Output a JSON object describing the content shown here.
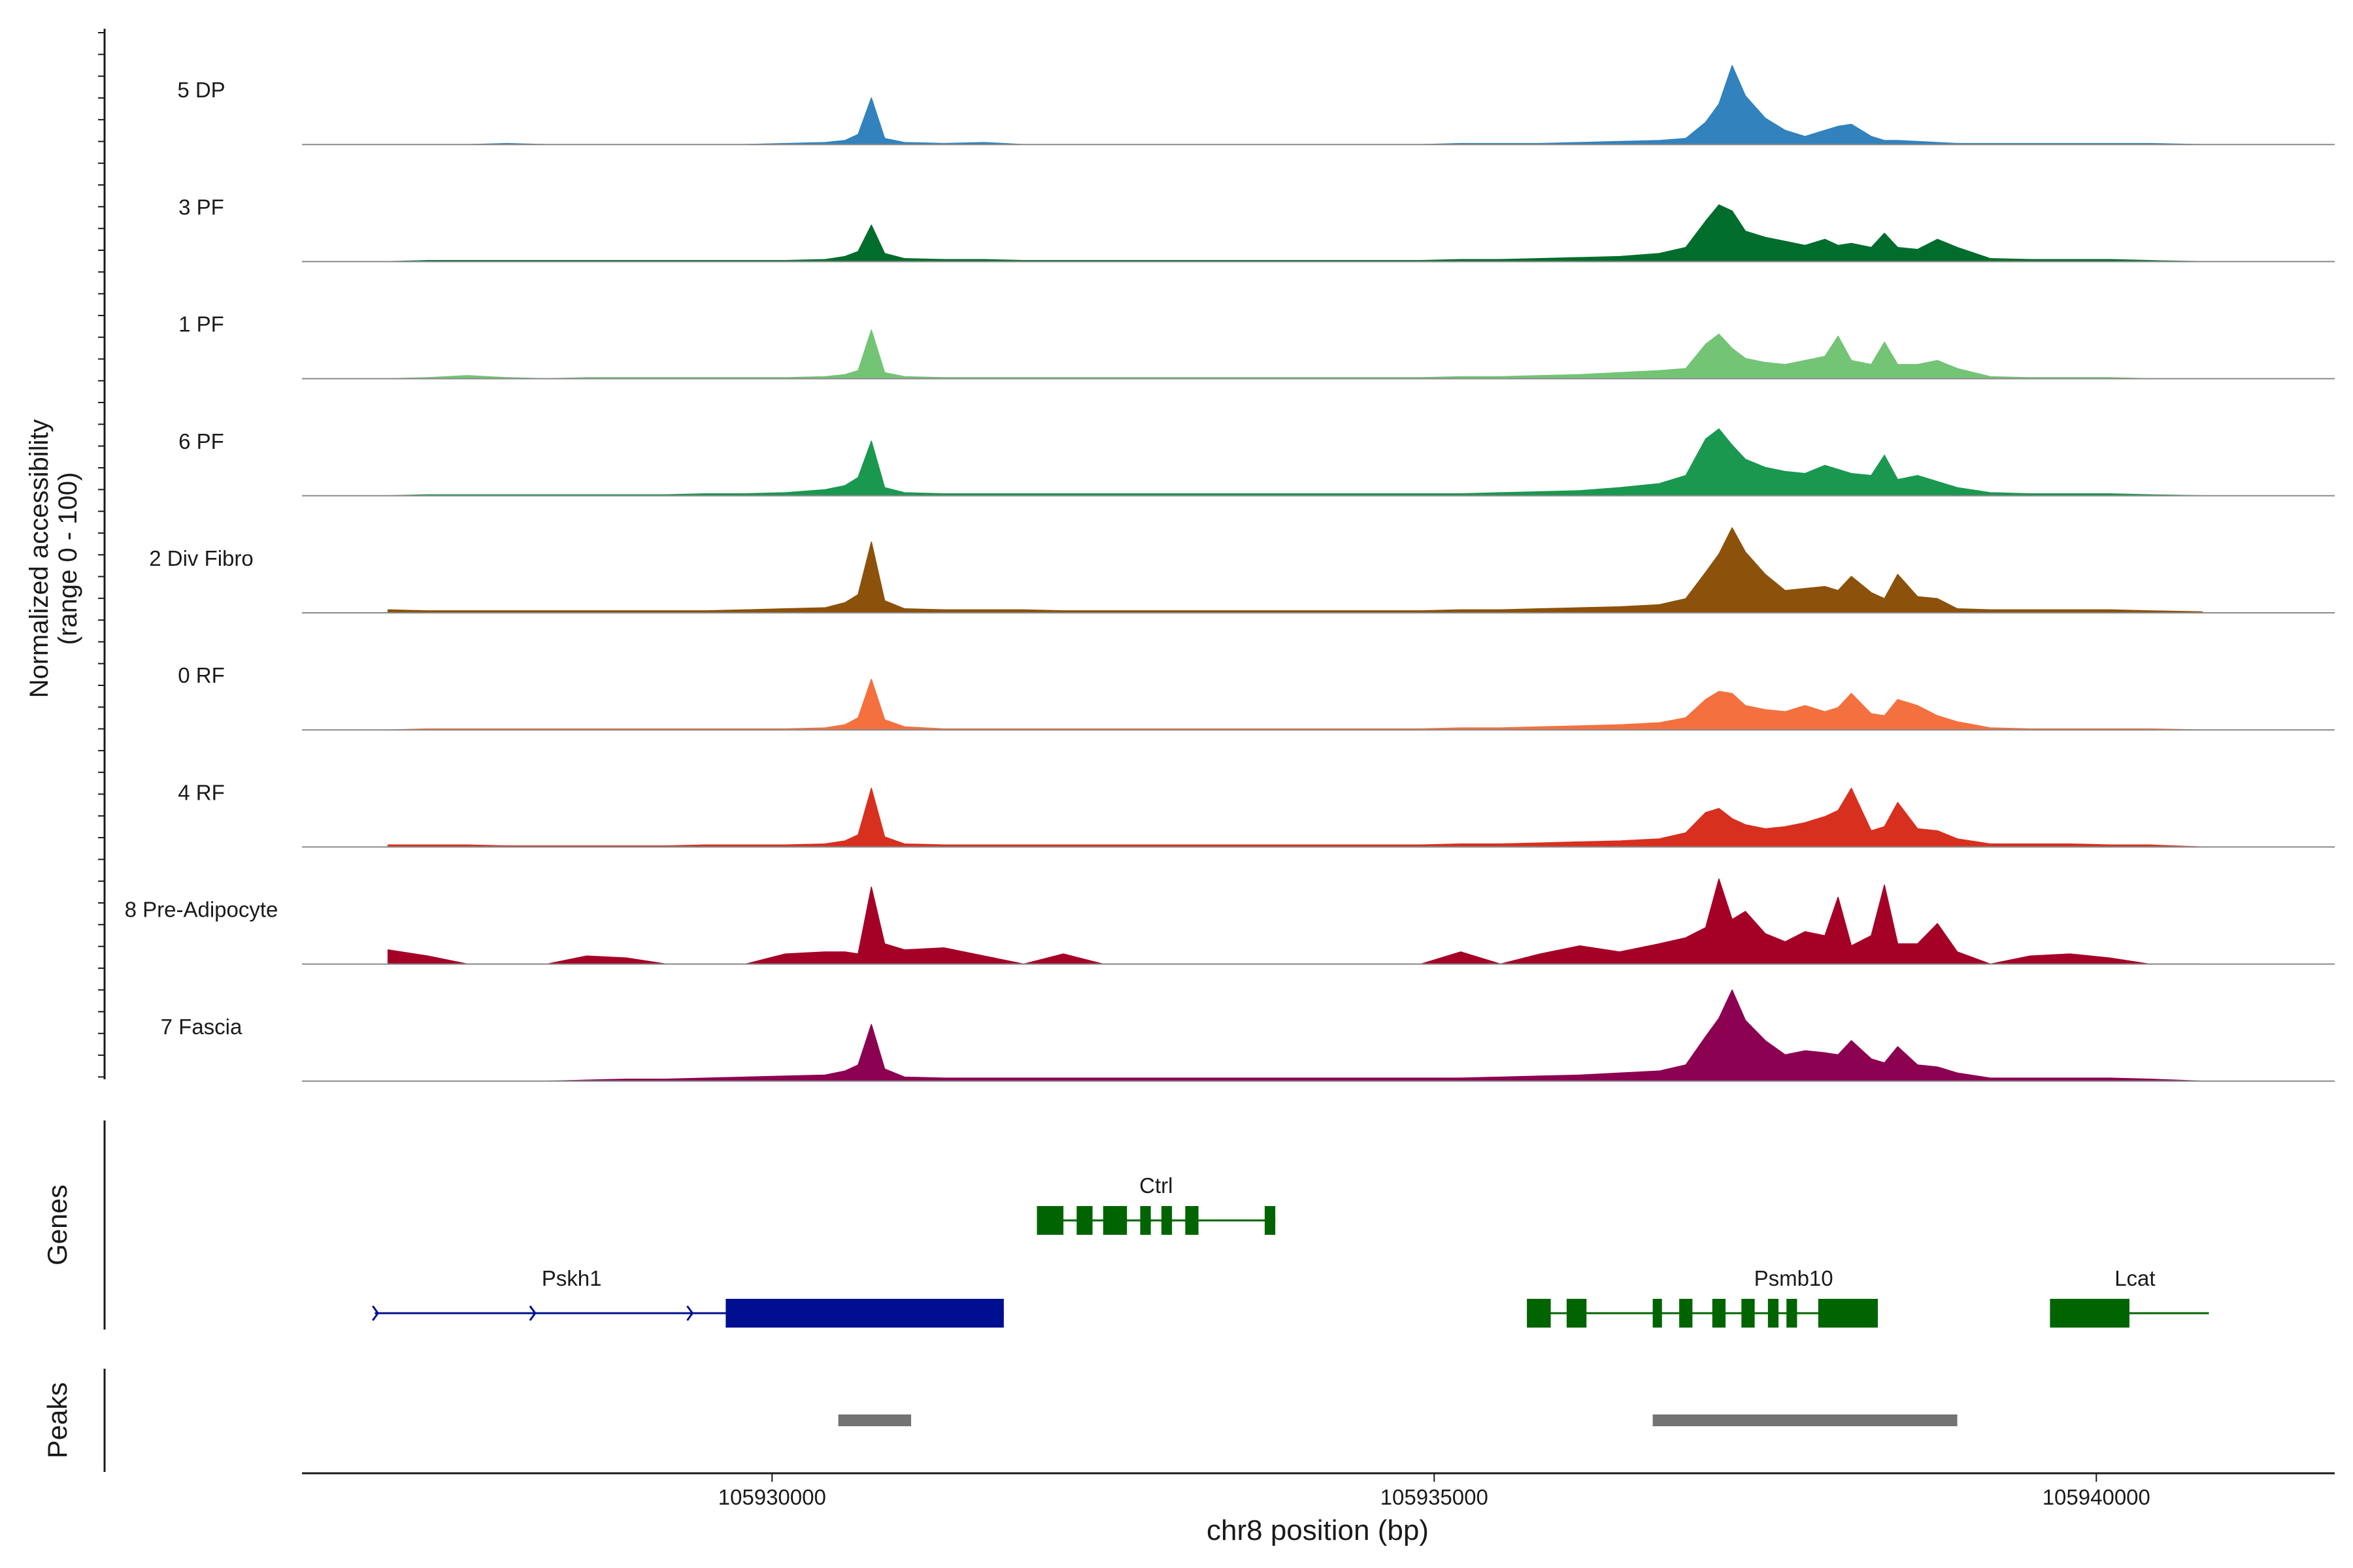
{
  "chart_data": {
    "type": "area",
    "title": "",
    "y_axis_label": [
      "Normalized accessibility",
      "(range 0 - 100)"
    ],
    "xlabel": "chr8 position (bp)",
    "xlim": [
      105926450,
      105941800
    ],
    "x_ticks": [
      105930000,
      105935000,
      105940000
    ],
    "x_tick_labels": [
      "105930000",
      "105935000",
      "105940000"
    ],
    "ylim": [
      0,
      100
    ],
    "coverage_bins": [
      105927100,
      105927400,
      105927700,
      105928000,
      105928300,
      105928600,
      105928900,
      105929200,
      105929500,
      105929800,
      105930100,
      105930400,
      105930550,
      105930650,
      105930750,
      105930850,
      105931000,
      105931300,
      105931600,
      105931900,
      105932200,
      105932500,
      105932800,
      105933100,
      105933400,
      105933700,
      105934000,
      105934300,
      105934600,
      105934900,
      105935200,
      105935500,
      105935800,
      105936100,
      105936400,
      105936700,
      105936900,
      105937050,
      105937150,
      105937250,
      105937350,
      105937500,
      105937650,
      105937800,
      105937950,
      105938050,
      105938150,
      105938300,
      105938400,
      105938500,
      105938650,
      105938800,
      105938950,
      105939200,
      105939500,
      105939800,
      105940100,
      105940400,
      105940800
    ],
    "series": [
      {
        "name": "5 DP",
        "color": "#3182bd",
        "values": [
          0,
          0,
          0,
          1,
          0,
          0,
          0,
          0,
          0,
          0,
          1,
          2,
          4,
          10,
          46,
          6,
          2,
          1,
          2,
          0,
          0,
          0,
          0,
          0,
          0,
          0,
          0,
          0,
          0,
          0,
          1,
          1,
          1,
          2,
          3,
          4,
          6,
          22,
          40,
          78,
          48,
          26,
          14,
          8,
          14,
          18,
          20,
          8,
          4,
          4,
          3,
          2,
          1,
          1,
          1,
          1,
          1,
          1,
          0
        ]
      },
      {
        "name": "3 PF",
        "color": "#006d2c",
        "values": [
          0,
          1,
          1,
          1,
          1,
          1,
          1,
          1,
          1,
          1,
          1,
          2,
          5,
          10,
          36,
          8,
          3,
          2,
          2,
          1,
          1,
          1,
          1,
          1,
          1,
          1,
          1,
          1,
          1,
          1,
          2,
          2,
          3,
          4,
          5,
          8,
          14,
          40,
          56,
          50,
          30,
          24,
          20,
          16,
          22,
          16,
          18,
          14,
          28,
          14,
          12,
          22,
          14,
          3,
          2,
          2,
          2,
          1,
          0
        ]
      },
      {
        "name": "1 PF",
        "color": "#74c476",
        "values": [
          0,
          1,
          3,
          1,
          0,
          1,
          1,
          1,
          1,
          1,
          1,
          2,
          4,
          8,
          48,
          6,
          2,
          1,
          1,
          1,
          1,
          1,
          1,
          1,
          1,
          1,
          1,
          1,
          1,
          1,
          2,
          2,
          3,
          4,
          6,
          8,
          10,
          34,
          44,
          30,
          20,
          16,
          14,
          18,
          22,
          42,
          18,
          14,
          36,
          14,
          14,
          18,
          10,
          2,
          1,
          1,
          1,
          0,
          0
        ]
      },
      {
        "name": "6 PF",
        "color": "#1a9850",
        "values": [
          0,
          1,
          1,
          1,
          1,
          1,
          1,
          1,
          2,
          2,
          3,
          6,
          10,
          18,
          54,
          8,
          3,
          2,
          2,
          2,
          2,
          2,
          2,
          2,
          2,
          2,
          2,
          2,
          2,
          2,
          2,
          3,
          4,
          5,
          8,
          12,
          20,
          56,
          66,
          50,
          36,
          28,
          24,
          22,
          30,
          26,
          22,
          20,
          40,
          16,
          20,
          14,
          8,
          3,
          2,
          2,
          2,
          1,
          0
        ]
      },
      {
        "name": "2 Div Fibro",
        "color": "#8c510a",
        "values": [
          3,
          2,
          2,
          2,
          2,
          2,
          2,
          2,
          2,
          3,
          4,
          5,
          10,
          18,
          70,
          12,
          4,
          3,
          3,
          3,
          2,
          2,
          2,
          2,
          2,
          2,
          2,
          2,
          2,
          2,
          3,
          3,
          4,
          5,
          6,
          8,
          14,
          40,
          58,
          84,
          60,
          38,
          22,
          24,
          26,
          22,
          36,
          20,
          14,
          38,
          16,
          14,
          4,
          3,
          3,
          3,
          3,
          2,
          1
        ]
      },
      {
        "name": "0 RF",
        "color": "#f4703f",
        "values": [
          0,
          1,
          1,
          1,
          1,
          1,
          1,
          1,
          1,
          1,
          1,
          2,
          5,
          12,
          50,
          10,
          3,
          1,
          1,
          1,
          1,
          1,
          1,
          1,
          1,
          1,
          1,
          1,
          1,
          1,
          2,
          2,
          3,
          4,
          5,
          7,
          12,
          30,
          38,
          36,
          24,
          20,
          18,
          24,
          18,
          22,
          36,
          16,
          14,
          30,
          24,
          14,
          8,
          2,
          1,
          1,
          1,
          1,
          0
        ]
      },
      {
        "name": "4 RF",
        "color": "#d7301f",
        "values": [
          2,
          2,
          2,
          1,
          1,
          1,
          1,
          1,
          2,
          2,
          2,
          3,
          6,
          12,
          58,
          10,
          3,
          2,
          2,
          2,
          2,
          2,
          2,
          2,
          2,
          2,
          2,
          2,
          2,
          2,
          3,
          3,
          4,
          5,
          6,
          8,
          14,
          34,
          38,
          28,
          22,
          18,
          20,
          24,
          30,
          36,
          58,
          16,
          20,
          44,
          18,
          16,
          8,
          3,
          3,
          3,
          2,
          2,
          0
        ]
      },
      {
        "name": "8 Pre-Adipocyte",
        "color": "#a50026",
        "values": [
          14,
          8,
          0,
          0,
          0,
          8,
          6,
          0,
          0,
          0,
          10,
          12,
          12,
          10,
          76,
          20,
          14,
          16,
          8,
          0,
          10,
          0,
          0,
          0,
          0,
          0,
          0,
          0,
          0,
          0,
          12,
          0,
          10,
          18,
          12,
          20,
          26,
          36,
          84,
          44,
          52,
          30,
          22,
          32,
          28,
          66,
          18,
          28,
          78,
          20,
          20,
          40,
          12,
          0,
          8,
          10,
          6,
          0,
          0
        ]
      },
      {
        "name": "7 Fascia",
        "color": "#8c0051",
        "values": [
          0,
          0,
          0,
          0,
          0,
          1,
          2,
          2,
          3,
          4,
          5,
          6,
          10,
          16,
          56,
          12,
          4,
          3,
          3,
          3,
          3,
          3,
          3,
          3,
          3,
          3,
          3,
          3,
          3,
          3,
          3,
          4,
          5,
          6,
          8,
          10,
          16,
          44,
          62,
          90,
          60,
          40,
          26,
          30,
          28,
          26,
          40,
          22,
          18,
          34,
          16,
          14,
          8,
          3,
          3,
          3,
          3,
          2,
          0
        ]
      }
    ],
    "genes": [
      {
        "name": "Ctrl",
        "strand": "+",
        "start": 105932000,
        "end": 105933800,
        "color": "#006400",
        "exons": [
          [
            105932000,
            105932200
          ],
          [
            105932300,
            105932420
          ],
          [
            105932500,
            105932680
          ],
          [
            105932780,
            105932860
          ],
          [
            105932940,
            105933020
          ],
          [
            105933120,
            105933220
          ],
          [
            105933720,
            105933800
          ]
        ]
      },
      {
        "name": "Pskh1",
        "strand": "+",
        "start": 105927000,
        "end": 105931750,
        "color": "#000f8f",
        "exons": [
          [
            105929650,
            105931750
          ]
        ]
      },
      {
        "name": "Psmb10",
        "strand": "-",
        "start": 105935700,
        "end": 105938350,
        "color": "#006400",
        "exons": [
          [
            105935700,
            105935880
          ],
          [
            105936000,
            105936150
          ],
          [
            105936650,
            105936720
          ],
          [
            105936850,
            105936950
          ],
          [
            105937100,
            105937200
          ],
          [
            105937320,
            105937420
          ],
          [
            105937520,
            105937600
          ],
          [
            105937660,
            105937740
          ],
          [
            105937900,
            105938350
          ]
        ]
      },
      {
        "name": "Lcat",
        "strand": "-",
        "start": 105939650,
        "end": 105940850,
        "color": "#006400",
        "exons": [
          [
            105939650,
            105940250
          ]
        ]
      }
    ],
    "peaks": [
      [
        105930500,
        105931050
      ],
      [
        105936650,
        105938950
      ]
    ],
    "track_labels": [
      "Genes",
      "Peaks"
    ],
    "peak_color": "#737373"
  }
}
